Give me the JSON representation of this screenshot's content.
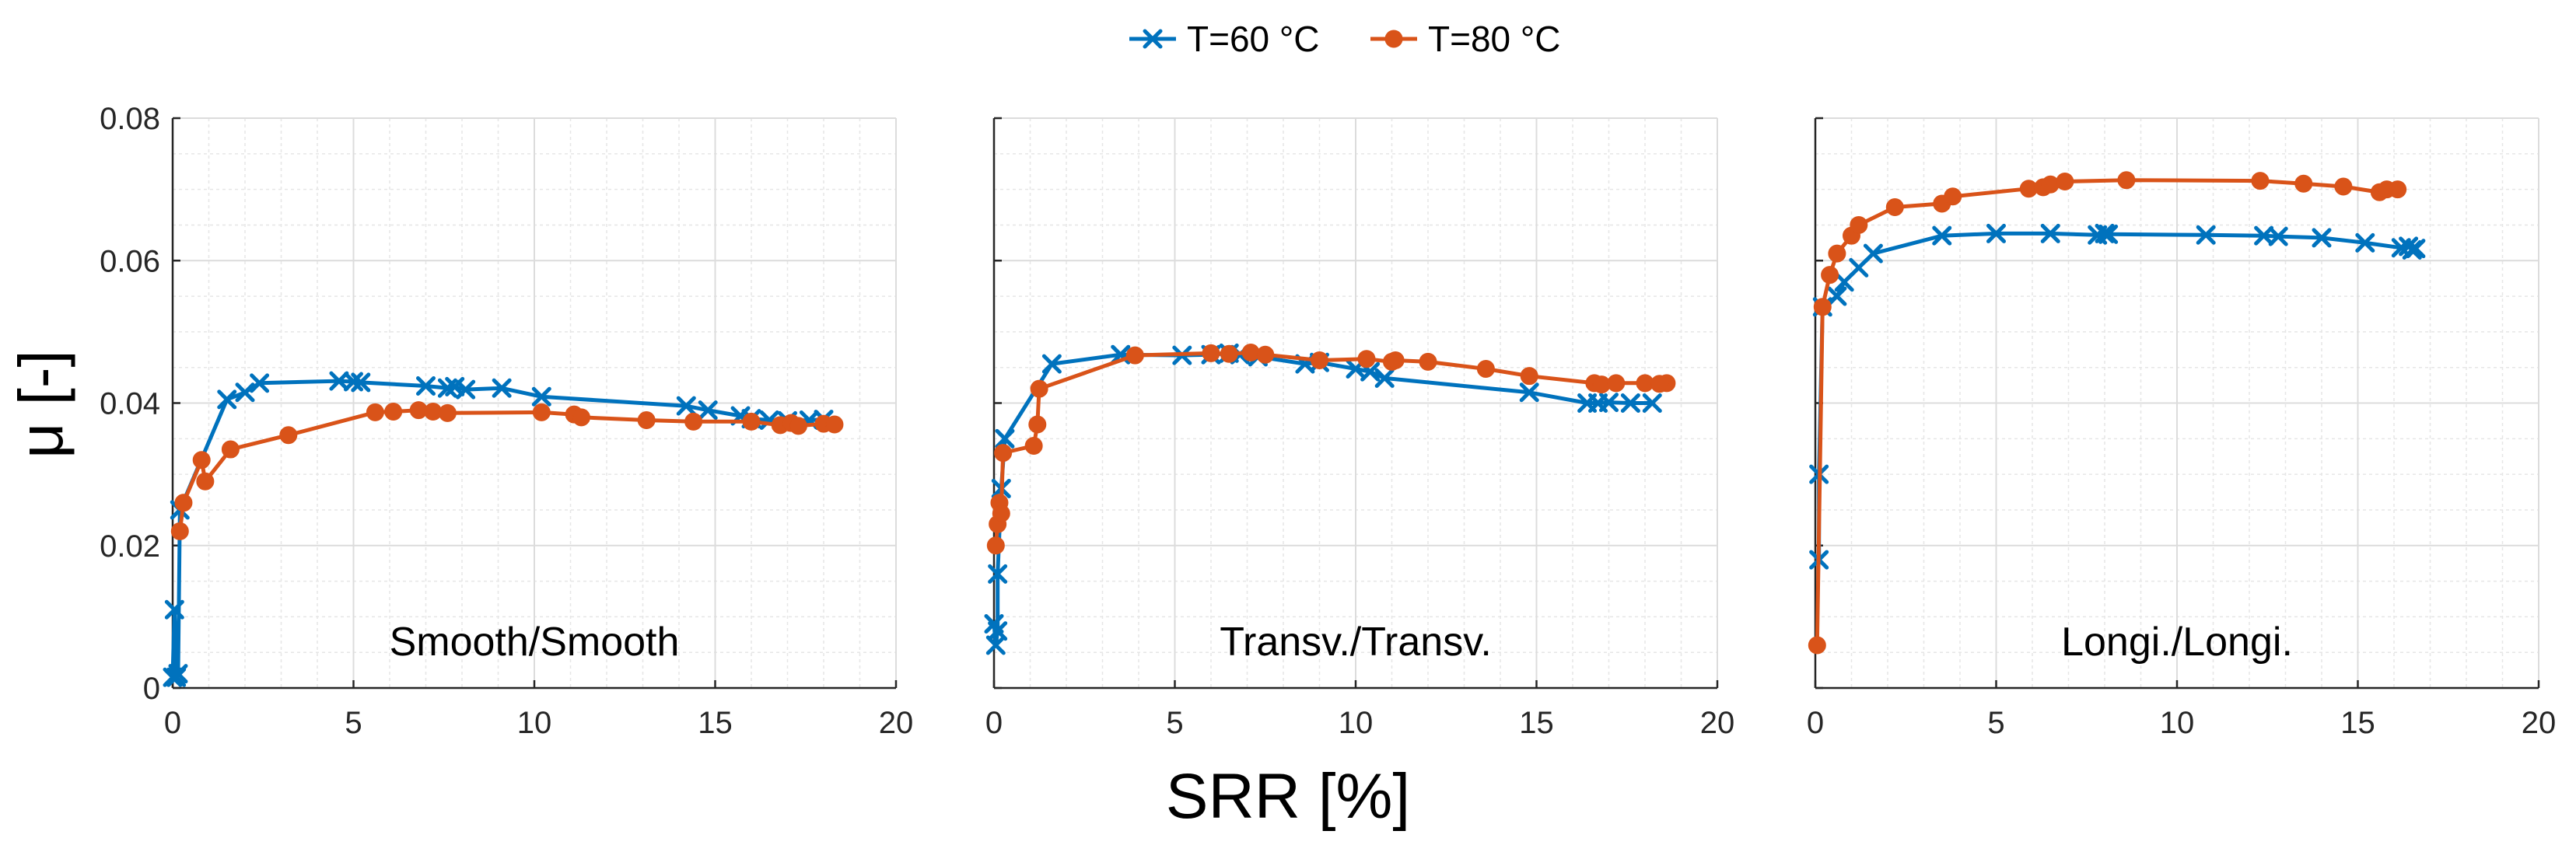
{
  "chart_data": {
    "type": "line",
    "legend": {
      "placement": "top-center",
      "entries": [
        {
          "name": "T=60 °C",
          "marker": "x",
          "color": "#0072BD"
        },
        {
          "name": "T=80 °C",
          "marker": "circle",
          "color": "#D95319"
        }
      ]
    },
    "xlabel": "SRR [%]",
    "ylabel": "μ [-]",
    "xlim": [
      0,
      20
    ],
    "ylim": [
      0,
      0.08
    ],
    "xticks": [
      0,
      5,
      10,
      15,
      20
    ],
    "yticks": [
      0,
      0.02,
      0.04,
      0.06,
      0.08
    ],
    "ytick_labels": [
      "0",
      "0.02",
      "0.04",
      "0.06",
      "0.08"
    ],
    "grid": true,
    "panels": [
      {
        "title": "Smooth/Smooth",
        "series": [
          {
            "name": "T=60 °C",
            "x": [
              0.0,
              0.05,
              0.1,
              0.15,
              0.2,
              1.5,
              2.0,
              2.4,
              4.6,
              5.0,
              5.2,
              7.0,
              7.6,
              7.8,
              8.1,
              9.1,
              10.2,
              14.2,
              14.8,
              15.7,
              16.0,
              16.5,
              17.0,
              17.6,
              18.0
            ],
            "y": [
              0.0015,
              0.011,
              0.0015,
              0.002,
              0.025,
              0.0405,
              0.0415,
              0.0428,
              0.0431,
              0.043,
              0.0429,
              0.0424,
              0.0421,
              0.0423,
              0.0419,
              0.0421,
              0.0409,
              0.0396,
              0.039,
              0.0382,
              0.0378,
              0.0376,
              0.0375,
              0.0376,
              0.0377
            ]
          },
          {
            "name": "T=80 °C",
            "x": [
              0.2,
              0.3,
              0.8,
              0.9,
              1.6,
              3.2,
              5.6,
              6.1,
              6.8,
              7.2,
              7.6,
              10.2,
              11.1,
              11.3,
              13.1,
              14.4,
              16.0,
              16.8,
              17.1,
              17.3,
              18.0,
              18.3
            ],
            "y": [
              0.022,
              0.026,
              0.032,
              0.029,
              0.0335,
              0.0355,
              0.0387,
              0.0388,
              0.039,
              0.0388,
              0.0386,
              0.0387,
              0.0384,
              0.038,
              0.0376,
              0.0374,
              0.0374,
              0.0369,
              0.0372,
              0.0368,
              0.0371,
              0.037
            ]
          }
        ]
      },
      {
        "title": "Transv./Transv.",
        "series": [
          {
            "name": "T=60 °C",
            "x": [
              0.0,
              0.05,
              0.1,
              0.1,
              0.2,
              0.3,
              1.6,
              3.5,
              5.2,
              6.0,
              6.5,
              6.8,
              7.3,
              8.6,
              9.0,
              10.0,
              10.4,
              10.8,
              14.8,
              16.4,
              16.7,
              17.0,
              17.6,
              18.2
            ],
            "y": [
              0.009,
              0.006,
              0.008,
              0.016,
              0.028,
              0.035,
              0.0455,
              0.0468,
              0.0467,
              0.0468,
              0.047,
              0.0468,
              0.0465,
              0.0455,
              0.0457,
              0.0448,
              0.0444,
              0.0435,
              0.0415,
              0.04,
              0.04,
              0.0401,
              0.04,
              0.04
            ]
          },
          {
            "name": "T=80 °C",
            "x": [
              0.05,
              0.1,
              0.15,
              0.2,
              0.25,
              1.1,
              1.2,
              1.25,
              3.9,
              6.0,
              6.5,
              7.1,
              7.5,
              9.0,
              10.3,
              11.0,
              11.1,
              12.0,
              13.6,
              14.8,
              16.6,
              16.8,
              17.2,
              18.0,
              18.6,
              18.4
            ],
            "y": [
              0.02,
              0.023,
              0.026,
              0.0245,
              0.033,
              0.034,
              0.037,
              0.042,
              0.0467,
              0.047,
              0.0469,
              0.0471,
              0.0468,
              0.046,
              0.0462,
              0.0458,
              0.046,
              0.0458,
              0.0448,
              0.0438,
              0.0428,
              0.0426,
              0.0428,
              0.0428,
              0.0428,
              0.0427
            ]
          }
        ]
      },
      {
        "title": "Longi./Longi.",
        "series": [
          {
            "name": "T=60 °C",
            "x": [
              0.1,
              0.1,
              0.2,
              0.6,
              0.8,
              1.2,
              1.6,
              3.5,
              5.0,
              6.5,
              7.8,
              8.0,
              8.1,
              10.8,
              12.4,
              12.8,
              14.0,
              15.2,
              16.2,
              16.4,
              16.5,
              16.6
            ],
            "y": [
              0.018,
              0.03,
              0.0535,
              0.055,
              0.057,
              0.059,
              0.061,
              0.0635,
              0.0638,
              0.0638,
              0.0636,
              0.0638,
              0.0637,
              0.0636,
              0.0635,
              0.0634,
              0.0632,
              0.0625,
              0.0618,
              0.062,
              0.0615,
              0.0617
            ]
          },
          {
            "name": "T=80 °C",
            "x": [
              0.05,
              0.2,
              0.4,
              0.6,
              1.0,
              1.2,
              2.2,
              3.5,
              3.8,
              5.9,
              6.3,
              6.5,
              6.9,
              8.6,
              12.3,
              13.5,
              14.6,
              15.6,
              15.8,
              16.1
            ],
            "y": [
              0.006,
              0.0535,
              0.058,
              0.061,
              0.0635,
              0.065,
              0.0675,
              0.068,
              0.069,
              0.0701,
              0.0703,
              0.0707,
              0.0711,
              0.0713,
              0.0712,
              0.0708,
              0.0704,
              0.0696,
              0.07,
              0.07
            ]
          }
        ]
      }
    ]
  }
}
